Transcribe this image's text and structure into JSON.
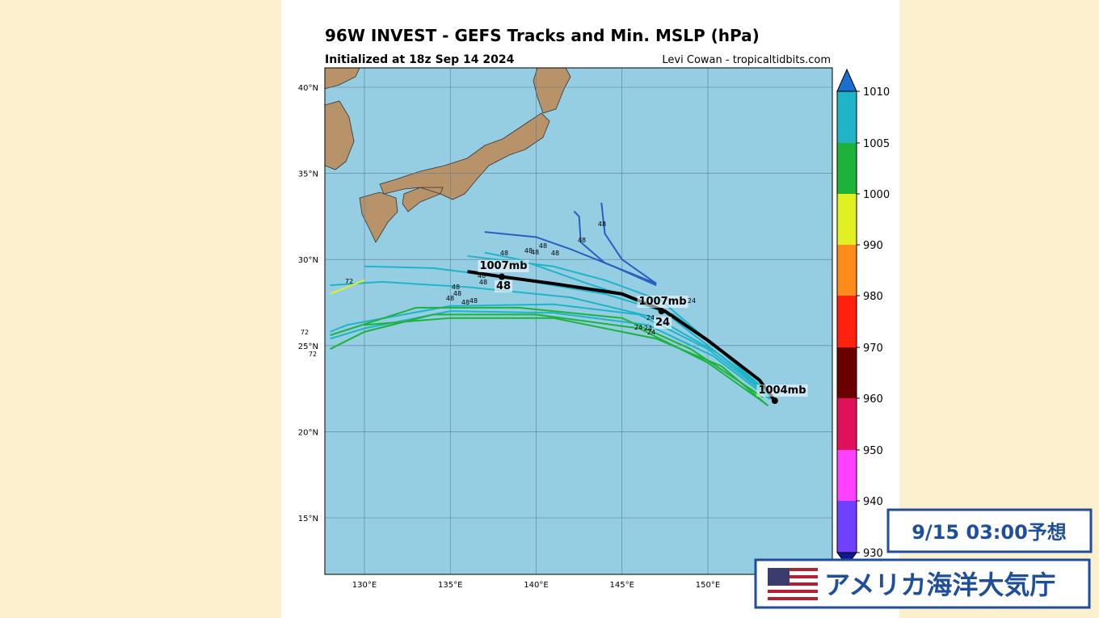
{
  "header": {
    "title": "96W INVEST - GEFS Tracks and Min. MSLP (hPa)",
    "subtitle": "Initialized at 18z Sep 14 2024",
    "credit": "Levi Cowan - tropicaltidbits.com"
  },
  "map": {
    "lat_labels": [
      "40°N",
      "35°N",
      "30°N",
      "25°N",
      "20°N",
      "15°N"
    ],
    "lon_labels": [
      "130°E",
      "135°E",
      "140°E",
      "145°E",
      "150°E"
    ],
    "annotations": [
      "1007mb",
      "48",
      "1007mb",
      "24",
      "1004mb"
    ],
    "track_labels": [
      "48",
      "48",
      "48",
      "48",
      "48",
      "48",
      "48",
      "48",
      "48",
      "48",
      "48",
      "48",
      "48",
      "48",
      "24",
      "24",
      "24",
      "24",
      "24",
      "72",
      "72",
      "72"
    ]
  },
  "colorbar": {
    "ticks": [
      1010,
      1005,
      1000,
      990,
      980,
      970,
      960,
      950,
      940,
      930
    ]
  },
  "overlay": {
    "time": "9/15 03:00予想",
    "source": "アメリカ海洋大気庁"
  }
}
